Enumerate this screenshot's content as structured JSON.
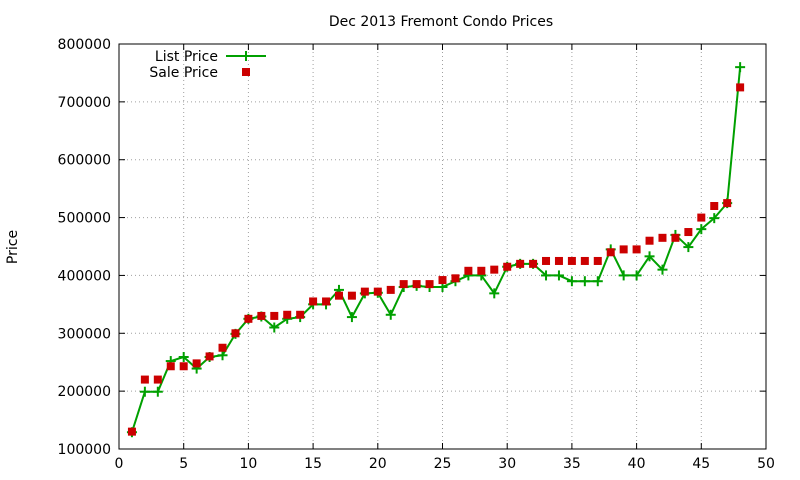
{
  "chart_data": {
    "type": "line",
    "title": "Dec 2013 Fremont Condo Prices",
    "xlabel": "",
    "ylabel": "Price",
    "xlim": [
      0,
      50
    ],
    "ylim": [
      100000,
      800000
    ],
    "xticks": [
      "0",
      "5",
      "10",
      "15",
      "20",
      "25",
      "30",
      "35",
      "40",
      "45",
      "50"
    ],
    "yticks": [
      "100000",
      "200000",
      "300000",
      "400000",
      "500000",
      "600000",
      "700000",
      "800000"
    ],
    "grid": true,
    "legend_position": "top-left",
    "x": [
      1,
      2,
      3,
      4,
      5,
      6,
      7,
      8,
      9,
      10,
      11,
      12,
      13,
      14,
      15,
      16,
      17,
      18,
      19,
      20,
      21,
      22,
      23,
      24,
      25,
      26,
      27,
      28,
      29,
      30,
      31,
      32,
      33,
      34,
      35,
      36,
      37,
      38,
      39,
      40,
      41,
      42,
      43,
      44,
      45,
      46,
      47,
      48
    ],
    "series": [
      {
        "name": "List Price",
        "color": "#00a000",
        "marker": "plus",
        "style": "line",
        "values": [
          129000,
          199000,
          199000,
          252000,
          259000,
          239000,
          259000,
          262000,
          299000,
          325000,
          329000,
          310000,
          325000,
          328000,
          350000,
          350000,
          375000,
          328000,
          369000,
          370000,
          332000,
          380000,
          382000,
          380000,
          380000,
          390000,
          400000,
          400000,
          369000,
          415000,
          420000,
          420000,
          400000,
          400000,
          390000,
          390000,
          390000,
          445000,
          400000,
          400000,
          433000,
          410000,
          470000,
          449000,
          480000,
          499000,
          525000,
          760000
        ]
      },
      {
        "name": "Sale Price",
        "color": "#cc0000",
        "marker": "square",
        "style": "points",
        "values": [
          130000,
          220000,
          220000,
          243000,
          243000,
          248000,
          260000,
          275000,
          300000,
          325000,
          330000,
          330000,
          332000,
          332000,
          355000,
          355000,
          365000,
          365000,
          372000,
          372000,
          375000,
          385000,
          385000,
          385000,
          392000,
          395000,
          408000,
          408000,
          410000,
          415000,
          420000,
          420000,
          425000,
          425000,
          425000,
          425000,
          425000,
          440000,
          445000,
          445000,
          460000,
          465000,
          465000,
          475000,
          500000,
          520000,
          525000,
          725000
        ]
      }
    ]
  }
}
